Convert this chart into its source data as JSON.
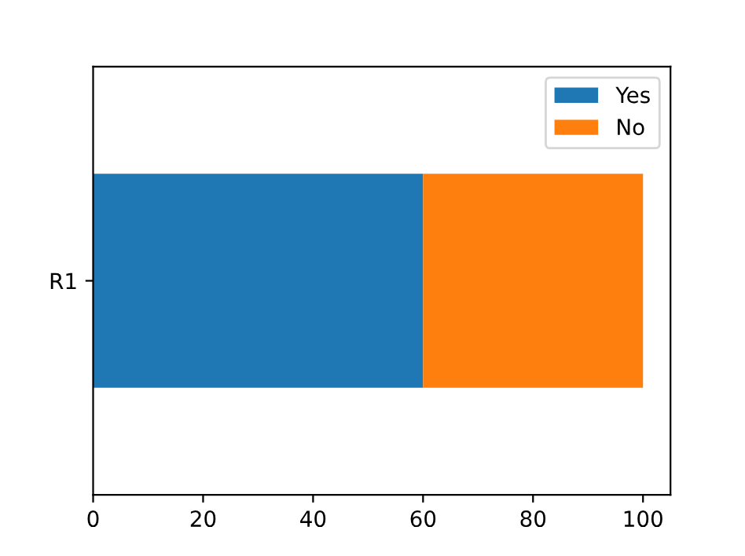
{
  "chart_data": {
    "type": "bar",
    "orientation": "horizontal",
    "stacked": true,
    "categories": [
      "R1"
    ],
    "series": [
      {
        "name": "Yes",
        "color": "#1f77b4",
        "values": [
          60
        ]
      },
      {
        "name": "No",
        "color": "#ff7f0e",
        "values": [
          40
        ]
      }
    ],
    "xlim": [
      0,
      105
    ],
    "xticks": [
      0,
      20,
      40,
      60,
      80,
      100
    ],
    "grid": false,
    "legend": "top right"
  }
}
